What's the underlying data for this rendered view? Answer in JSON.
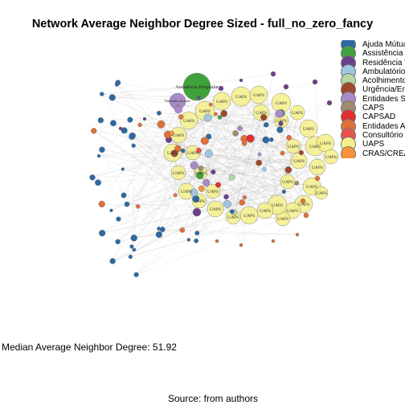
{
  "title": "Network Average Neighbor Degree Sized - full_no_zero_fancy",
  "legend": [
    {
      "label": "Ajuda Mútua",
      "color": "#2b6aa3"
    },
    {
      "label": "Assistência Hospitalar",
      "color": "#3fa33b"
    },
    {
      "label": "Residência Terapêutica",
      "color": "#6c3f8c"
    },
    {
      "label": "Ambulatório",
      "color": "#9ec6e0"
    },
    {
      "label": "Acolhimento",
      "color": "#b7d7a0"
    },
    {
      "label": "Urgência/Emergência",
      "color": "#a0482a"
    },
    {
      "label": "Entidades Sociais",
      "color": "#a98ac8"
    },
    {
      "label": "CAPS",
      "color": "#a08b70"
    },
    {
      "label": "CAPSAD",
      "color": "#e0312f"
    },
    {
      "label": "Entidades Assistenciais",
      "color": "#e0703a"
    },
    {
      "label": "Consultório na Rua",
      "color": "#e8504a"
    },
    {
      "label": "UAPS",
      "color": "#f5ee8a"
    },
    {
      "label": "CRAS/CREAS",
      "color": "#f7923a"
    }
  ],
  "node_labels": {
    "hospital": "Assistência Hospitalar",
    "entidades": "Entidades Sociais",
    "uaps": "UAPS"
  },
  "median_text": "Median Average Neighbor Degree: 51.92",
  "source": "Source: from authors"
}
